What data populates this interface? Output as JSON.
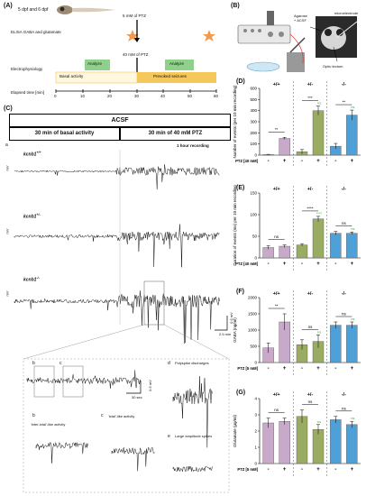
{
  "panel_labels": {
    "a": "(A)",
    "b": "(B)",
    "c": "(C)",
    "d": "(D)",
    "e": "(E)",
    "f": "(F)",
    "g": "(G)"
  },
  "panelA": {
    "header": "5 dpf and 6 dpf",
    "elisa_label": "ELISA GABA and glutamate",
    "elisa_ptz": "5 mM of PTZ",
    "ephys_label": "Electrophysiology",
    "ephys_ptz": "40 mM of PTZ",
    "analyze1": "Analyze",
    "analyze2": "Analyze",
    "basal": "Basal activity",
    "prevoked": "Prevoked seizures",
    "time_label": "Elapsed time [min]",
    "ticks": [
      "0",
      "10",
      "20",
      "30",
      "40",
      "50",
      "60"
    ],
    "colors": {
      "analyze": "#8fd18a",
      "seizure": "#f6c75a",
      "star": "#f39a4e"
    }
  },
  "panelB": {
    "agarose": "Agarose\n+ ACSF",
    "microelectrode": "microelectrode",
    "tectum": "Optic tectum"
  },
  "panelC": {
    "acsf": "ACSF",
    "basal_header": "30 min of basal activity",
    "ptz_header": "30 min of 40 mM PTZ",
    "recording": "1 hour recording",
    "row_a": "a",
    "traces": [
      {
        "gene": "kcnb1",
        "geno": "+/+"
      },
      {
        "gene": "kcnb1",
        "geno": "+/-"
      },
      {
        "gene": "kcnb1",
        "geno": "-/-"
      }
    ],
    "mv": "mV",
    "scale_v": "0.5 mV",
    "scale_t": "2.5 min",
    "inset_scale_t": "30 sec",
    "inset_scale_v": "0.5 mV",
    "inset_b": "b",
    "inset_c": "c",
    "sub_b_letter": "b",
    "sub_b_text": "'inter-ictal'-like activity",
    "sub_c_letter": "c",
    "sub_c_text": "'ictal'-like activity",
    "sub_d_letter": "d",
    "sub_d_text": "Polyspike discharges",
    "sub_e_letter": "e",
    "sub_e_text": "Large amplitude spikes"
  },
  "genotypes": [
    "+/+",
    "+/-",
    "-/-"
  ],
  "chart_data": [
    {
      "panel": "D",
      "type": "bar",
      "ylabel": "Number of events (per 10 min recording)",
      "yticks": [
        0,
        100,
        200,
        300,
        400,
        500,
        600
      ],
      "ylim": [
        0,
        600
      ],
      "treatment_label": "PTZ [40 mM]",
      "signs": [
        "-",
        "+",
        "-",
        "+",
        "-",
        "+"
      ],
      "values": [
        5,
        150,
        30,
        400,
        80,
        360
      ],
      "errors": [
        2,
        10,
        20,
        40,
        25,
        45
      ],
      "sig": [
        "**",
        "***",
        "**"
      ],
      "sig_green": [
        "",
        "ns",
        "ns"
      ]
    },
    {
      "panel": "E",
      "type": "bar",
      "ylabel": "Duration of events (ms) per 10 min recording",
      "yticks": [
        0,
        50,
        100,
        150
      ],
      "ylim": [
        0,
        150
      ],
      "treatment_label": "PTZ [40 mM]",
      "signs": [
        "-",
        "+",
        "-",
        "+",
        "-",
        "+"
      ],
      "values": [
        24,
        27,
        30,
        90,
        57,
        57
      ],
      "errors": [
        4,
        3,
        3,
        6,
        4,
        3
      ],
      "sig": [
        "ns",
        "****",
        "ns"
      ],
      "sig_green": [
        "",
        "****",
        "ns"
      ]
    },
    {
      "panel": "F",
      "type": "bar",
      "ylabel": "GABA (ng/ml)",
      "yticks": [
        0,
        500,
        1000,
        1500,
        2000
      ],
      "ylim": [
        0,
        2000
      ],
      "treatment_label": "PTZ [5 mM]",
      "signs": [
        "-",
        "+",
        "-",
        "+",
        "-",
        "+"
      ],
      "values": [
        450,
        1250,
        550,
        650,
        1150,
        1150
      ],
      "errors": [
        150,
        250,
        150,
        200,
        100,
        100
      ],
      "sig": [
        "**",
        "ns",
        "ns"
      ],
      "sig_green": [
        "",
        "ns",
        "ns"
      ]
    },
    {
      "panel": "G",
      "type": "bar",
      "ylabel": "Glutamate (µg/ml)",
      "yticks": [
        0,
        1,
        2,
        3,
        4
      ],
      "ylim": [
        0,
        4
      ],
      "treatment_label": "PTZ [5 mM]",
      "signs": [
        "-",
        "+",
        "-",
        "+",
        "-",
        "+"
      ],
      "values": [
        2.5,
        2.6,
        2.9,
        2.1,
        2.7,
        2.4
      ],
      "errors": [
        0.3,
        0.2,
        0.4,
        0.3,
        0.2,
        0.2
      ],
      "sig": [
        "ns",
        "ns",
        "ns"
      ],
      "sig_green": [
        "",
        "ns",
        "ns"
      ]
    }
  ],
  "colors": {
    "purple": "#c9a9c9",
    "olive": "#9aac62",
    "blue": "#4ea1d8",
    "green_sig": "#3cae3c"
  }
}
